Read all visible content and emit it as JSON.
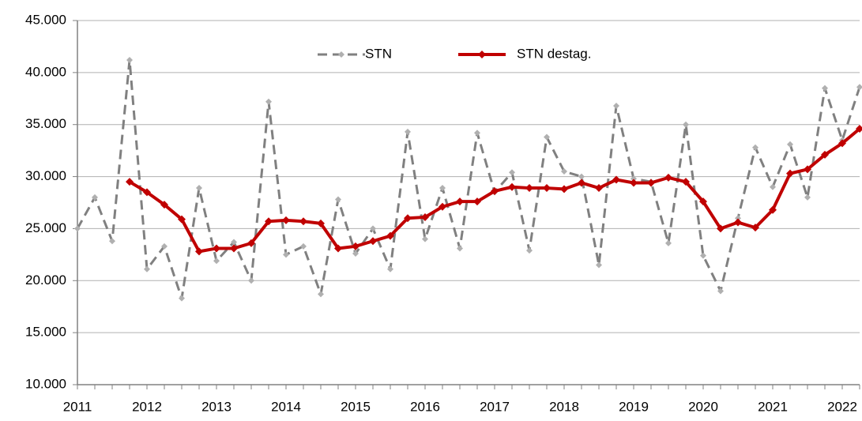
{
  "chart_data": {
    "type": "line",
    "categories": [
      "2011",
      null,
      null,
      null,
      "2012",
      null,
      null,
      null,
      "2013",
      null,
      null,
      null,
      "2014",
      null,
      null,
      null,
      "2015",
      null,
      null,
      null,
      "2016",
      null,
      null,
      null,
      "2017",
      null,
      null,
      null,
      "2018",
      null,
      null,
      null,
      "2019",
      null,
      null,
      null,
      "2020",
      null,
      null,
      null,
      "2021",
      null,
      null,
      null,
      "2022",
      null
    ],
    "series": [
      {
        "name": "STN",
        "color": "#808080",
        "dash": true,
        "marker_color": "#b0b0b0",
        "values": [
          25000,
          28000,
          23800,
          41200,
          21100,
          23300,
          18300,
          28900,
          21900,
          23700,
          20000,
          37200,
          22500,
          23300,
          18700,
          27800,
          22600,
          25000,
          21100,
          34300,
          24000,
          28900,
          23100,
          34200,
          28500,
          30400,
          22900,
          33800,
          30500,
          30000,
          21500,
          36800,
          29800,
          29500,
          23600,
          35000,
          22400,
          19000,
          26000,
          32800,
          29000,
          33100,
          28000,
          38500,
          33500,
          38600
        ]
      },
      {
        "name": "STN destag.",
        "color": "#c00000",
        "dash": false,
        "marker_color": "#c00000",
        "values": [
          null,
          null,
          null,
          29500,
          28500,
          27300,
          25900,
          22800,
          23100,
          23100,
          23600,
          25700,
          25800,
          25700,
          25500,
          23100,
          23300,
          23800,
          24300,
          26000,
          26100,
          27100,
          27600,
          27600,
          28600,
          29000,
          28900,
          28900,
          28800,
          29400,
          28900,
          29700,
          29400,
          29400,
          29900,
          29500,
          27600,
          25000,
          25600,
          25100,
          26800,
          30300,
          30700,
          32100,
          33200,
          34600
        ]
      }
    ],
    "ylim": [
      10000,
      45000
    ],
    "yticks": [
      {
        "value": 10000,
        "label": "10.000"
      },
      {
        "value": 15000,
        "label": "15.000"
      },
      {
        "value": 20000,
        "label": "20.000"
      },
      {
        "value": 25000,
        "label": "25.000"
      },
      {
        "value": 30000,
        "label": "30.000"
      },
      {
        "value": 35000,
        "label": "35.000"
      },
      {
        "value": 40000,
        "label": "40.000"
      },
      {
        "value": 45000,
        "label": "45.000"
      }
    ],
    "grid": true,
    "legend": "top"
  }
}
